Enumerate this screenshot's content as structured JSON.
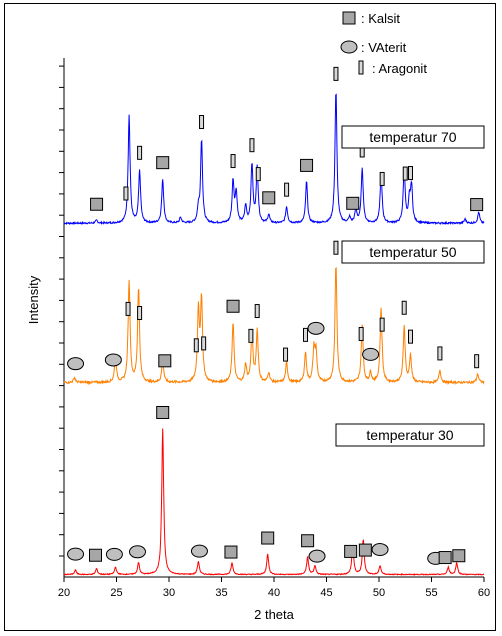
{
  "colors": {
    "background": "#ffffff",
    "axis": "#000000",
    "kalsit_marker_fill": "#a6a6a6",
    "vaterit_marker_fill": "#bfbfbf",
    "aragonit_marker_fill": "#d9d9d9",
    "series_70": "#0000ff",
    "series_50": "#ff8000",
    "series_30": "#ff0000"
  },
  "chart_data": {
    "type": "line",
    "xlabel": "2 theta",
    "ylabel": "Intensity",
    "xlim": [
      20,
      60
    ],
    "x_ticks": [
      20,
      25,
      30,
      35,
      40,
      45,
      50,
      55,
      60
    ],
    "grid": false,
    "legend": {
      "placement": "top-right",
      "entries": [
        {
          "symbol": "square",
          "label": ": Kalsit"
        },
        {
          "symbol": "circle",
          "label": ": VAterit"
        },
        {
          "symbol": "bar",
          "label": ": Aragonit"
        }
      ]
    },
    "annotations": [
      {
        "series": "temperatur 70",
        "text": "temperatur 70"
      },
      {
        "series": "temperatur 50",
        "text": "temperatur 50"
      },
      {
        "series": "temperatur 30",
        "text": "temperatur 30"
      }
    ],
    "series": [
      {
        "name": "temperatur 70",
        "color": "#0000ff",
        "baseline": 0.02,
        "noise": 0.012,
        "peaks": [
          {
            "x": 23.1,
            "h": 0.02
          },
          {
            "x": 26.2,
            "h": 0.78
          },
          {
            "x": 27.2,
            "h": 0.38
          },
          {
            "x": 29.4,
            "h": 0.32
          },
          {
            "x": 31.1,
            "h": 0.04
          },
          {
            "x": 32.8,
            "h": 0.1
          },
          {
            "x": 33.1,
            "h": 0.6
          },
          {
            "x": 36.1,
            "h": 0.3
          },
          {
            "x": 36.4,
            "h": 0.22
          },
          {
            "x": 37.3,
            "h": 0.12
          },
          {
            "x": 37.9,
            "h": 0.42
          },
          {
            "x": 38.4,
            "h": 0.4
          },
          {
            "x": 39.5,
            "h": 0.06
          },
          {
            "x": 41.2,
            "h": 0.12
          },
          {
            "x": 43.1,
            "h": 0.3
          },
          {
            "x": 45.9,
            "h": 0.96
          },
          {
            "x": 47.2,
            "h": 0.04
          },
          {
            "x": 47.8,
            "h": 0.1
          },
          {
            "x": 48.4,
            "h": 0.4
          },
          {
            "x": 50.2,
            "h": 0.36
          },
          {
            "x": 52.4,
            "h": 0.4
          },
          {
            "x": 52.9,
            "h": 0.16
          },
          {
            "x": 53.1,
            "h": 0.26
          },
          {
            "x": 58.2,
            "h": 0.03
          },
          {
            "x": 59.5,
            "h": 0.08
          }
        ],
        "markers": [
          {
            "type": "square",
            "x": 23.1
          },
          {
            "type": "bar",
            "x": 25.9
          },
          {
            "type": "bar",
            "x": 27.2
          },
          {
            "type": "square",
            "x": 29.4
          },
          {
            "type": "bar",
            "x": 33.1
          },
          {
            "type": "bar",
            "x": 36.1
          },
          {
            "type": "bar",
            "x": 37.9
          },
          {
            "type": "bar",
            "x": 38.5
          },
          {
            "type": "square",
            "x": 39.5
          },
          {
            "type": "bar",
            "x": 41.2
          },
          {
            "type": "square",
            "x": 43.1
          },
          {
            "type": "bar",
            "x": 45.9
          },
          {
            "type": "square",
            "x": 47.5
          },
          {
            "type": "bar",
            "x": 48.4
          },
          {
            "type": "bar",
            "x": 50.3
          },
          {
            "type": "bar",
            "x": 52.5
          },
          {
            "type": "bar",
            "x": 53.0
          },
          {
            "type": "square",
            "x": 59.3
          }
        ]
      },
      {
        "name": "temperatur 50",
        "color": "#ff8000",
        "baseline": 0.02,
        "noise": 0.018,
        "peaks": [
          {
            "x": 21.0,
            "h": 0.04
          },
          {
            "x": 24.9,
            "h": 0.2
          },
          {
            "x": 26.2,
            "h": 0.82
          },
          {
            "x": 27.1,
            "h": 0.76
          },
          {
            "x": 29.4,
            "h": 0.18
          },
          {
            "x": 32.8,
            "h": 0.58
          },
          {
            "x": 33.1,
            "h": 0.66
          },
          {
            "x": 36.1,
            "h": 0.48
          },
          {
            "x": 37.3,
            "h": 0.14
          },
          {
            "x": 37.9,
            "h": 0.4
          },
          {
            "x": 38.4,
            "h": 0.42
          },
          {
            "x": 39.5,
            "h": 0.08
          },
          {
            "x": 41.2,
            "h": 0.16
          },
          {
            "x": 43.0,
            "h": 0.24
          },
          {
            "x": 43.8,
            "h": 0.26
          },
          {
            "x": 44.0,
            "h": 0.24
          },
          {
            "x": 45.9,
            "h": 0.95
          },
          {
            "x": 48.4,
            "h": 0.46
          },
          {
            "x": 49.2,
            "h": 0.08
          },
          {
            "x": 50.2,
            "h": 0.6
          },
          {
            "x": 52.4,
            "h": 0.46
          },
          {
            "x": 53.0,
            "h": 0.22
          },
          {
            "x": 55.8,
            "h": 0.1
          },
          {
            "x": 59.4,
            "h": 0.07
          }
        ],
        "markers": [
          {
            "type": "circle",
            "x": 21.1
          },
          {
            "type": "circle",
            "x": 24.7
          },
          {
            "type": "bar",
            "x": 26.1
          },
          {
            "type": "bar",
            "x": 27.2
          },
          {
            "type": "square",
            "x": 29.6
          },
          {
            "type": "bar",
            "x": 32.6
          },
          {
            "type": "bar",
            "x": 33.3
          },
          {
            "type": "square",
            "x": 36.1
          },
          {
            "type": "bar",
            "x": 37.8
          },
          {
            "type": "bar",
            "x": 38.4
          },
          {
            "type": "bar",
            "x": 41.1
          },
          {
            "type": "bar",
            "x": 43.0
          },
          {
            "type": "circle",
            "x": 44.0
          },
          {
            "type": "bar",
            "x": 45.9
          },
          {
            "type": "bar",
            "x": 48.3
          },
          {
            "type": "circle",
            "x": 49.2
          },
          {
            "type": "bar",
            "x": 50.3
          },
          {
            "type": "bar",
            "x": 52.4
          },
          {
            "type": "bar",
            "x": 53.0
          },
          {
            "type": "bar",
            "x": 55.8
          },
          {
            "type": "bar",
            "x": 59.3
          }
        ]
      },
      {
        "name": "temperatur 30",
        "color": "#ff0000",
        "baseline": 0.01,
        "noise": 0.006,
        "peaks": [
          {
            "x": 21.1,
            "h": 0.03
          },
          {
            "x": 23.1,
            "h": 0.04
          },
          {
            "x": 24.9,
            "h": 0.05
          },
          {
            "x": 27.1,
            "h": 0.08
          },
          {
            "x": 29.4,
            "h": 1.0
          },
          {
            "x": 32.8,
            "h": 0.09
          },
          {
            "x": 36.0,
            "h": 0.08
          },
          {
            "x": 39.4,
            "h": 0.14
          },
          {
            "x": 43.2,
            "h": 0.12
          },
          {
            "x": 43.9,
            "h": 0.06
          },
          {
            "x": 47.5,
            "h": 0.2
          },
          {
            "x": 48.5,
            "h": 0.24
          },
          {
            "x": 50.1,
            "h": 0.06
          },
          {
            "x": 56.6,
            "h": 0.05
          },
          {
            "x": 57.4,
            "h": 0.08
          }
        ],
        "markers": [
          {
            "type": "circle",
            "x": 21.1
          },
          {
            "type": "square",
            "x": 23.0
          },
          {
            "type": "circle",
            "x": 24.8
          },
          {
            "type": "circle",
            "x": 27.0
          },
          {
            "type": "square",
            "x": 29.4
          },
          {
            "type": "circle",
            "x": 32.9
          },
          {
            "type": "square",
            "x": 35.9
          },
          {
            "type": "square",
            "x": 39.4
          },
          {
            "type": "square",
            "x": 43.2
          },
          {
            "type": "circle",
            "x": 44.1
          },
          {
            "type": "square",
            "x": 47.3
          },
          {
            "type": "square",
            "x": 48.7
          },
          {
            "type": "circle",
            "x": 50.1
          },
          {
            "type": "circle",
            "x": 55.4
          },
          {
            "type": "square",
            "x": 56.3
          },
          {
            "type": "square",
            "x": 57.6
          }
        ]
      }
    ]
  }
}
